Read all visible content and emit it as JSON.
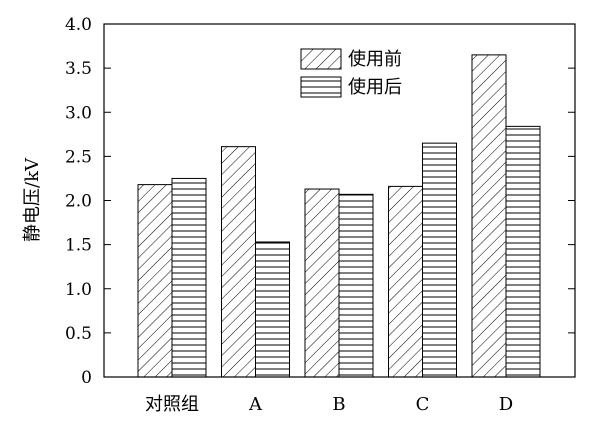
{
  "chart_data": {
    "type": "bar",
    "title": "",
    "xlabel": "",
    "ylabel": "静电压/kV",
    "ylim": [
      0,
      4.0
    ],
    "yticks": [
      "0",
      "0.5",
      "1.0",
      "1.5",
      "2.0",
      "2.5",
      "3.0",
      "3.5",
      "4.0"
    ],
    "categories": [
      "对照组",
      "A",
      "B",
      "C",
      "D"
    ],
    "series": [
      {
        "name": "使用前",
        "values": [
          2.18,
          2.61,
          2.13,
          2.16,
          3.65
        ]
      },
      {
        "name": "使用后",
        "values": [
          2.25,
          1.53,
          2.07,
          2.65,
          2.84
        ]
      }
    ],
    "legend_position": "top-right",
    "grid": false
  }
}
